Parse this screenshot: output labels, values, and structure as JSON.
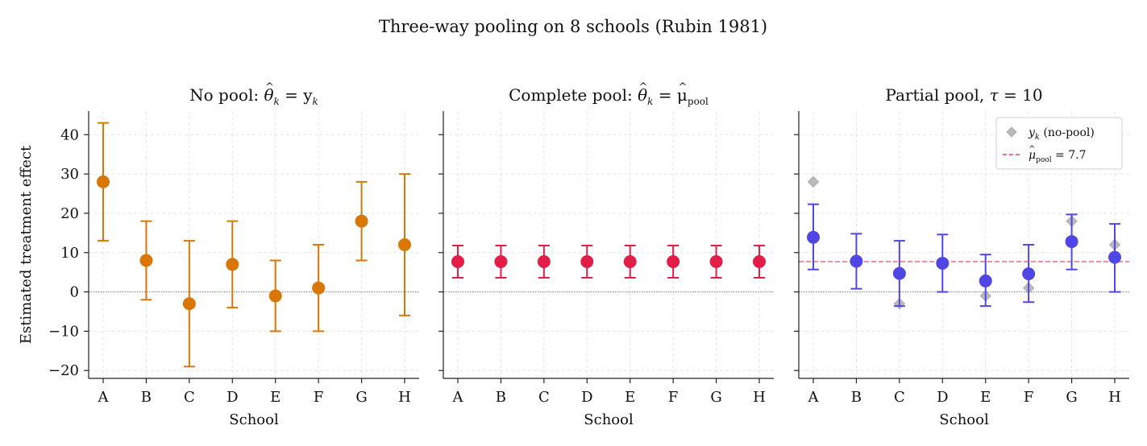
{
  "figure": {
    "suptitle": "Three-way pooling on 8 schools (Rubin 1981)",
    "ylabel": "Estimated treatment effect"
  },
  "colors": {
    "no_pool": "#d97706",
    "complete_pool": "#e11d48",
    "partial_pool": "#4f46e5",
    "nopool_marker": "#aaaaaa",
    "pool_line": "#e11d48"
  },
  "chart_data": [
    {
      "type": "scatter",
      "panel": "no-pool",
      "title": {
        "text": "No pool: ",
        "math_base": "θ",
        "math_hat": "^",
        "math_sub": "k",
        "math_eq": " = y",
        "math_eq_sub": "k",
        "math_suffix": ""
      },
      "xlabel": "School",
      "ylabel": "Estimated treatment effect",
      "categories": [
        "A",
        "B",
        "C",
        "D",
        "E",
        "F",
        "G",
        "H"
      ],
      "ylim": [
        -22,
        46
      ],
      "yticks": [
        -20,
        -10,
        0,
        10,
        20,
        30,
        40
      ],
      "ytick_labels": [
        "−20",
        "−10",
        "0",
        "10",
        "20",
        "30",
        "40"
      ],
      "grid": true,
      "zero_line": true,
      "series": [
        {
          "values": [
            28,
            8,
            -3,
            7,
            -1,
            1,
            18,
            12
          ],
          "lower": [
            13,
            -2,
            -19,
            -4,
            -10,
            -10,
            8,
            -6
          ],
          "upper": [
            43,
            18,
            13,
            18,
            8,
            12,
            28,
            30
          ]
        }
      ]
    },
    {
      "type": "scatter",
      "panel": "complete-pool",
      "title": {
        "text": "Complete pool: ",
        "math_base": "θ",
        "math_hat": "^",
        "math_sub": "k",
        "math_eq": " = μ",
        "math_eq_sub": "pool",
        "math_suffix": ""
      },
      "xlabel": "School",
      "categories": [
        "A",
        "B",
        "C",
        "D",
        "E",
        "F",
        "G",
        "H"
      ],
      "ylim": [
        -22,
        46
      ],
      "grid": true,
      "zero_line": true,
      "series": [
        {
          "values": [
            7.7,
            7.7,
            7.7,
            7.7,
            7.7,
            7.7,
            7.7,
            7.7
          ],
          "lower": [
            3.6,
            3.6,
            3.6,
            3.6,
            3.6,
            3.6,
            3.6,
            3.6
          ],
          "upper": [
            11.8,
            11.8,
            11.8,
            11.8,
            11.8,
            11.8,
            11.8,
            11.8
          ]
        }
      ]
    },
    {
      "type": "scatter",
      "panel": "partial-pool",
      "title": {
        "text": "Partial pool, ",
        "math_base": "τ",
        "math_hat": "",
        "math_sub": "",
        "math_eq": " = 10",
        "math_eq_sub": "",
        "math_suffix": ""
      },
      "xlabel": "School",
      "categories": [
        "A",
        "B",
        "C",
        "D",
        "E",
        "F",
        "G",
        "H"
      ],
      "ylim": [
        -22,
        46
      ],
      "grid": true,
      "zero_line": true,
      "legend": {
        "placement": "top-right"
      },
      "series": [
        {
          "role": "estimate",
          "values": [
            13.9,
            7.8,
            4.7,
            7.3,
            2.8,
            4.6,
            12.8,
            8.8
          ],
          "lower": [
            5.7,
            0.8,
            -3.6,
            0,
            -3.6,
            -2.6,
            5.7,
            0
          ],
          "upper": [
            22.3,
            14.8,
            13.0,
            14.6,
            9.5,
            12.0,
            19.7,
            17.3
          ]
        },
        {
          "role": "no-pool-reference",
          "name": "y_k (no-pool)",
          "label_base": "y",
          "label_sub": "k",
          "label_rest": " (no-pool)",
          "values": [
            28,
            8,
            -3,
            7,
            -1,
            1,
            18,
            12
          ]
        }
      ],
      "reference_line": {
        "name": "μ_pool = 7.7",
        "label_base": "μ",
        "label_sub": "pool",
        "label_rest": " = 7.7",
        "value": 7.7
      }
    }
  ]
}
